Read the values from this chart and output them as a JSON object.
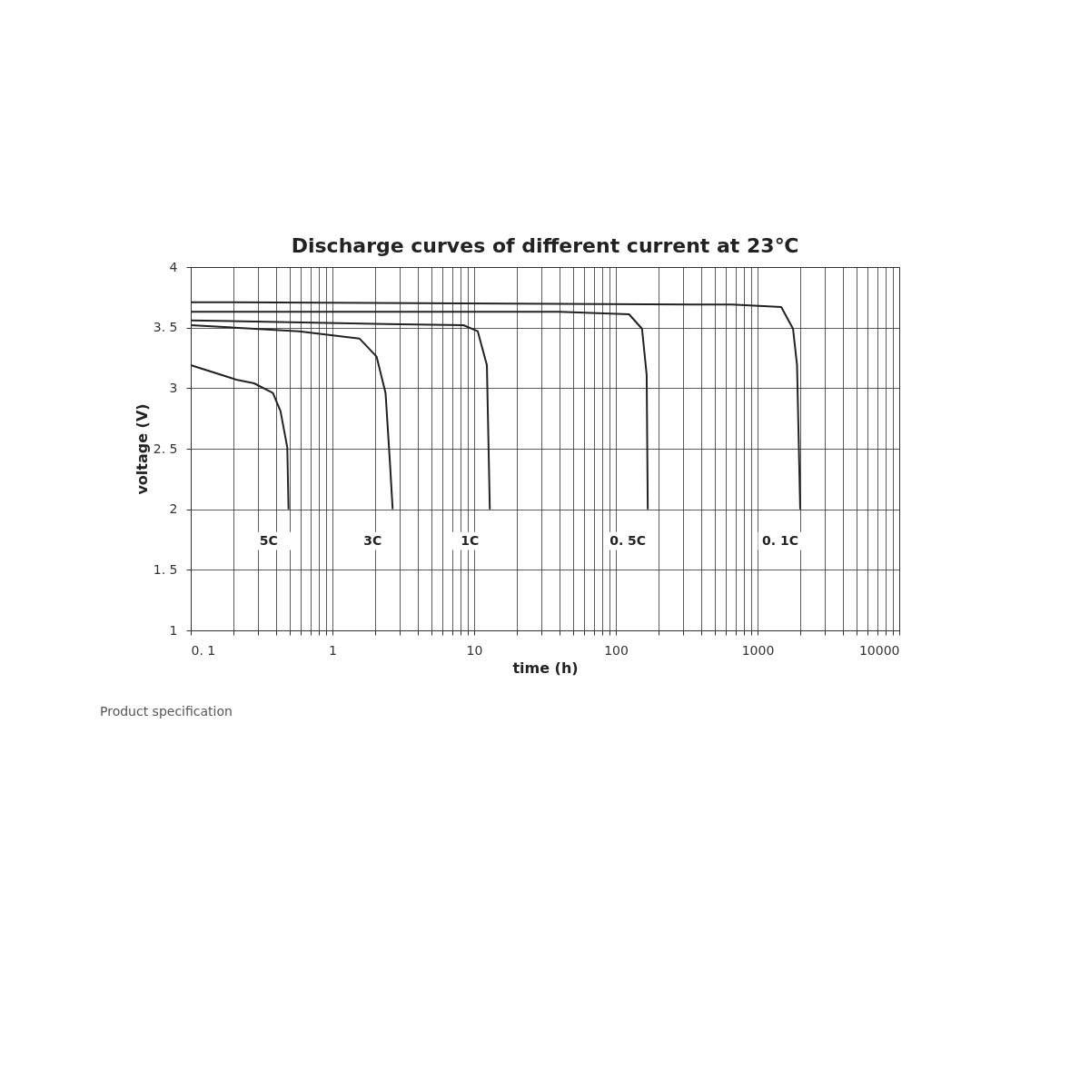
{
  "chart_data": {
    "type": "line",
    "title": "Discharge curves of different current at 23℃",
    "xlabel": "time (h)",
    "ylabel": "voltage (V)",
    "log": "x",
    "grid": true,
    "legend": false,
    "marker": "none",
    "line_style": "solid",
    "xlim": [
      0.1,
      10000
    ],
    "ylim": [
      1,
      4
    ],
    "xticks": [
      {
        "value": 0.1,
        "label": "0. 1"
      },
      {
        "value": 0.2,
        "label": null
      },
      {
        "value": 0.3,
        "label": null
      },
      {
        "value": 0.4,
        "label": null
      },
      {
        "value": 0.5,
        "label": null
      },
      {
        "value": 0.6,
        "label": null
      },
      {
        "value": 0.7,
        "label": null
      },
      {
        "value": 0.8,
        "label": null
      },
      {
        "value": 0.9,
        "label": null
      },
      {
        "value": 1,
        "label": "1"
      },
      {
        "value": 2,
        "label": null
      },
      {
        "value": 3,
        "label": null
      },
      {
        "value": 4,
        "label": null
      },
      {
        "value": 5,
        "label": null
      },
      {
        "value": 6,
        "label": null
      },
      {
        "value": 7,
        "label": null
      },
      {
        "value": 8,
        "label": null
      },
      {
        "value": 9,
        "label": null
      },
      {
        "value": 10,
        "label": "10"
      },
      {
        "value": 20,
        "label": null
      },
      {
        "value": 30,
        "label": null
      },
      {
        "value": 40,
        "label": null
      },
      {
        "value": 50,
        "label": null
      },
      {
        "value": 60,
        "label": null
      },
      {
        "value": 70,
        "label": null
      },
      {
        "value": 80,
        "label": null
      },
      {
        "value": 90,
        "label": null
      },
      {
        "value": 100,
        "label": "100"
      },
      {
        "value": 200,
        "label": null
      },
      {
        "value": 300,
        "label": null
      },
      {
        "value": 400,
        "label": null
      },
      {
        "value": 500,
        "label": null
      },
      {
        "value": 600,
        "label": null
      },
      {
        "value": 700,
        "label": null
      },
      {
        "value": 800,
        "label": null
      },
      {
        "value": 900,
        "label": null
      },
      {
        "value": 1000,
        "label": "1000"
      },
      {
        "value": 2000,
        "label": null
      },
      {
        "value": 3000,
        "label": null
      },
      {
        "value": 4000,
        "label": null
      },
      {
        "value": 5000,
        "label": null
      },
      {
        "value": 6000,
        "label": null
      },
      {
        "value": 7000,
        "label": null
      },
      {
        "value": 8000,
        "label": null
      },
      {
        "value": 9000,
        "label": null
      },
      {
        "value": 10000,
        "label": "10000"
      }
    ],
    "yticks": [
      1,
      {
        "value": 1.5,
        "label": "1. 5"
      },
      2,
      {
        "value": 2.5,
        "label": "2. 5"
      },
      3,
      {
        "value": 3.5,
        "label": "3. 5"
      },
      4
    ],
    "annotations": [
      "Product specification"
    ],
    "series": [
      {
        "name": "5C",
        "color": "#222222",
        "x": [
          0.1,
          0.21,
          0.28,
          0.38,
          0.43,
          0.48,
          0.49
        ],
        "values": [
          3.19,
          3.07,
          3.04,
          2.96,
          2.81,
          2.51,
          2.0
        ]
      },
      {
        "name": "3C",
        "color": "#222222",
        "x": [
          0.1,
          0.58,
          1.55,
          2.05,
          2.37,
          2.55,
          2.66
        ],
        "values": [
          3.52,
          3.47,
          3.41,
          3.26,
          2.96,
          2.37,
          2.0
        ]
      },
      {
        "name": "1C",
        "color": "#222222",
        "x": [
          0.1,
          2.4,
          8.4,
          10.6,
          12.3,
          12.9
        ],
        "values": [
          3.56,
          3.53,
          3.52,
          3.47,
          3.19,
          2.0
        ]
      },
      {
        "name": "0. 5C",
        "color": "#222222",
        "x": [
          0.1,
          40,
          124,
          153,
          165,
          168
        ],
        "values": [
          3.63,
          3.63,
          3.61,
          3.49,
          3.11,
          2.0
        ]
      },
      {
        "name": "0. 1C",
        "color": "#222222",
        "x": [
          0.1,
          660,
          1470,
          1780,
          1900,
          2000
        ],
        "values": [
          3.71,
          3.69,
          3.67,
          3.49,
          3.19,
          2.0
        ]
      }
    ]
  }
}
